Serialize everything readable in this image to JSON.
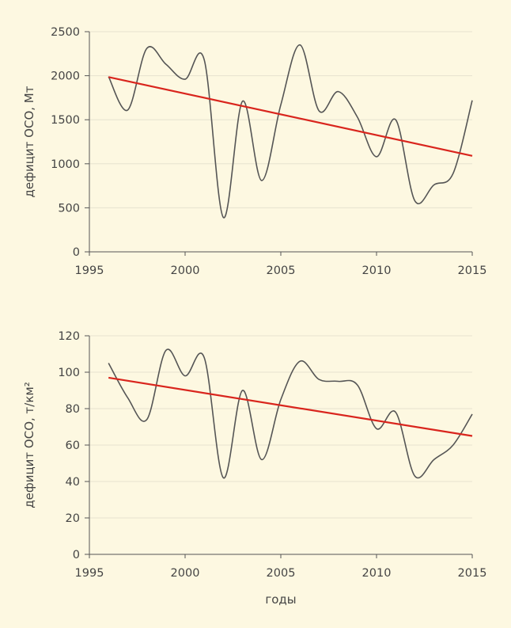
{
  "xlabel": "годы",
  "chart_data": [
    {
      "type": "line",
      "title": "",
      "xlabel": "",
      "ylabel": "дефицит ОСО, Мт",
      "xlim": [
        1995,
        2015
      ],
      "ylim": [
        0,
        2500
      ],
      "xticks": [
        1995,
        2000,
        2005,
        2010,
        2015
      ],
      "yticks": [
        0,
        500,
        1000,
        1500,
        2000,
        2500
      ],
      "grid": true,
      "series": [
        {
          "x": [
            1996,
            1997,
            1998,
            1999,
            2000,
            2001,
            2002,
            2003,
            2004,
            2005,
            2006,
            2007,
            2008,
            2009,
            2010,
            2011,
            2012,
            2013,
            2014,
            2015
          ],
          "values": [
            1990,
            1610,
            2310,
            2130,
            1960,
            2180,
            390,
            1710,
            810,
            1670,
            2350,
            1600,
            1820,
            1530,
            1080,
            1500,
            580,
            760,
            890,
            1720
          ],
          "color": "#555555"
        },
        {
          "x": [
            1996,
            2015
          ],
          "values": [
            1985,
            1090
          ],
          "color": "#d9251d",
          "style": "trend"
        }
      ]
    },
    {
      "type": "line",
      "title": "",
      "xlabel": "годы",
      "ylabel": "дефицит ОСО, т/км²",
      "xlim": [
        1995,
        2015
      ],
      "ylim": [
        0,
        120
      ],
      "xticks": [
        1995,
        2000,
        2005,
        2010,
        2015
      ],
      "yticks": [
        0,
        20,
        40,
        60,
        80,
        100,
        120
      ],
      "grid": true,
      "series": [
        {
          "x": [
            1996,
            1997,
            1998,
            1999,
            2000,
            2001,
            2002,
            2003,
            2004,
            2005,
            2006,
            2007,
            2008,
            2009,
            2010,
            2011,
            2012,
            2013,
            2014,
            2015
          ],
          "values": [
            105,
            86,
            74,
            112,
            98,
            108,
            42,
            90,
            52,
            85,
            106,
            96,
            95,
            93,
            69,
            78,
            43,
            52,
            60,
            77
          ],
          "color": "#555555"
        },
        {
          "x": [
            1996,
            2015
          ],
          "values": [
            97,
            65
          ],
          "color": "#d9251d",
          "style": "trend"
        }
      ]
    }
  ]
}
